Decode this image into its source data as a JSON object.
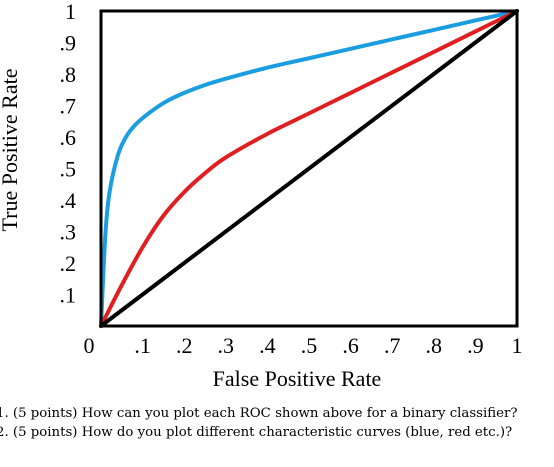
{
  "chart_data": {
    "type": "line",
    "xlabel": "False Positive Rate",
    "ylabel": "True Positive Rate",
    "xlim": [
      0,
      1
    ],
    "ylim": [
      0,
      1
    ],
    "x_ticks": [
      "0",
      ".1",
      ".2",
      ".3",
      ".4",
      ".5",
      ".6",
      ".7",
      ".8",
      ".9",
      "1"
    ],
    "y_ticks": [
      ".1",
      ".2",
      ".3",
      ".4",
      ".5",
      ".6",
      ".7",
      ".8",
      ".9",
      "1"
    ],
    "grid": false,
    "series": [
      {
        "color": "#1a9ee0",
        "x": [
          0,
          0.01,
          0.02,
          0.04,
          0.06,
          0.08,
          0.1,
          0.13,
          0.16,
          0.2,
          0.25,
          0.3,
          0.4,
          0.5,
          0.6,
          0.7,
          0.8,
          0.9,
          1.0
        ],
        "y": [
          0,
          0.28,
          0.42,
          0.54,
          0.6,
          0.635,
          0.66,
          0.69,
          0.715,
          0.74,
          0.765,
          0.785,
          0.82,
          0.85,
          0.88,
          0.91,
          0.94,
          0.97,
          1.0
        ]
      },
      {
        "color": "#e02020",
        "x": [
          0,
          0.05,
          0.1,
          0.15,
          0.2,
          0.25,
          0.3,
          0.4,
          0.5,
          0.6,
          0.7,
          0.8,
          0.9,
          1.0
        ],
        "y": [
          0,
          0.13,
          0.25,
          0.35,
          0.425,
          0.485,
          0.535,
          0.61,
          0.675,
          0.74,
          0.805,
          0.87,
          0.935,
          1.0
        ]
      },
      {
        "color": "#000000",
        "x": [
          0,
          1
        ],
        "y": [
          0,
          1
        ]
      }
    ]
  },
  "questions": [
    "1.  (5 points) How can you plot each ROC shown above for a binary classifier?",
    "2.  (5 points) How do you plot different characteristic curves (blue, red etc.)?"
  ]
}
